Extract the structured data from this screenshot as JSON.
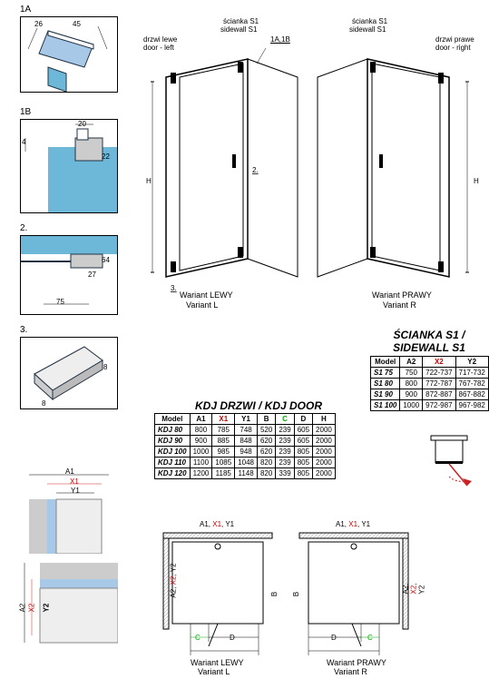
{
  "details": {
    "d1a": {
      "label": "1A",
      "dim_a": "26",
      "dim_b": "45"
    },
    "d1b": {
      "label": "1B",
      "dim_a": "20",
      "dim_b": "22",
      "dim_c": "4"
    },
    "d2": {
      "label": "2.",
      "dim_a": "75",
      "dim_b": "27",
      "dim_c": "64"
    },
    "d3": {
      "label": "3.",
      "dim_a": "8",
      "dim_b": "8"
    }
  },
  "plan": {
    "a1": "A1",
    "x1": "X1",
    "y1": "Y1",
    "a2": "A2",
    "x2": "X2",
    "y2": "Y2"
  },
  "enclosures": {
    "left": {
      "door_pl": "drzwi lewe",
      "door_en": "door - left",
      "side_pl": "ścianka S1",
      "side_en": "sidewall S1",
      "detail_ref": "1A,1B",
      "h": "H",
      "d2": "2.",
      "d3": "3.",
      "variant_pl": "Wariant LEWY",
      "variant_en": "Variant L"
    },
    "right": {
      "door_pl": "drzwi prawe",
      "door_en": "door - right",
      "side_pl": "ścianka S1",
      "side_en": "sidewall S1",
      "h": "H",
      "variant_pl": "Wariant PRAWY",
      "variant_en": "Variant R"
    }
  },
  "door_table": {
    "title": "KDJ DRZWI / KDJ DOOR",
    "headers": [
      "Model",
      "A1",
      "X1",
      "Y1",
      "B",
      "C",
      "D",
      "H"
    ],
    "header_colors": [
      "",
      "",
      "red",
      "",
      "",
      "green",
      "",
      ""
    ],
    "rows": [
      [
        "KDJ 80",
        "800",
        "785",
        "748",
        "520",
        "239",
        "605",
        "2000"
      ],
      [
        "KDJ 90",
        "900",
        "885",
        "848",
        "620",
        "239",
        "605",
        "2000"
      ],
      [
        "KDJ 100",
        "1000",
        "985",
        "948",
        "620",
        "239",
        "805",
        "2000"
      ],
      [
        "KDJ 110",
        "1100",
        "1085",
        "1048",
        "820",
        "239",
        "805",
        "2000"
      ],
      [
        "KDJ 120",
        "1200",
        "1185",
        "1148",
        "820",
        "339",
        "805",
        "2000"
      ]
    ]
  },
  "side_table": {
    "title_l1": "ŚCIANKA S1 /",
    "title_l2": "SIDEWALL S1",
    "headers": [
      "Model",
      "A2",
      "X2",
      "Y2"
    ],
    "header_colors": [
      "",
      "",
      "red",
      ""
    ],
    "rows": [
      [
        "S1 75",
        "750",
        "722-737",
        "717-732"
      ],
      [
        "S1 80",
        "800",
        "772-787",
        "767-782"
      ],
      [
        "S1 90",
        "900",
        "872-887",
        "867-882"
      ],
      [
        "S1 100",
        "1000",
        "972-987",
        "967-982"
      ]
    ]
  },
  "topviews": {
    "top_label": "A1, X1, Y1",
    "side_label": "A2, X2, Y2",
    "c": "C",
    "d": "D",
    "b": "B",
    "left": {
      "variant_pl": "Wariant LEWY",
      "variant_en": "Variant L"
    },
    "right": {
      "variant_pl": "Wariant PRAWY",
      "variant_en": "Variant R"
    }
  },
  "colors": {
    "detail_blue": "#a8c8e8",
    "detail_cyan": "#6db8d8",
    "grey": "#888",
    "light_grey": "#ccc",
    "red": "#c22",
    "green": "#0a0"
  }
}
